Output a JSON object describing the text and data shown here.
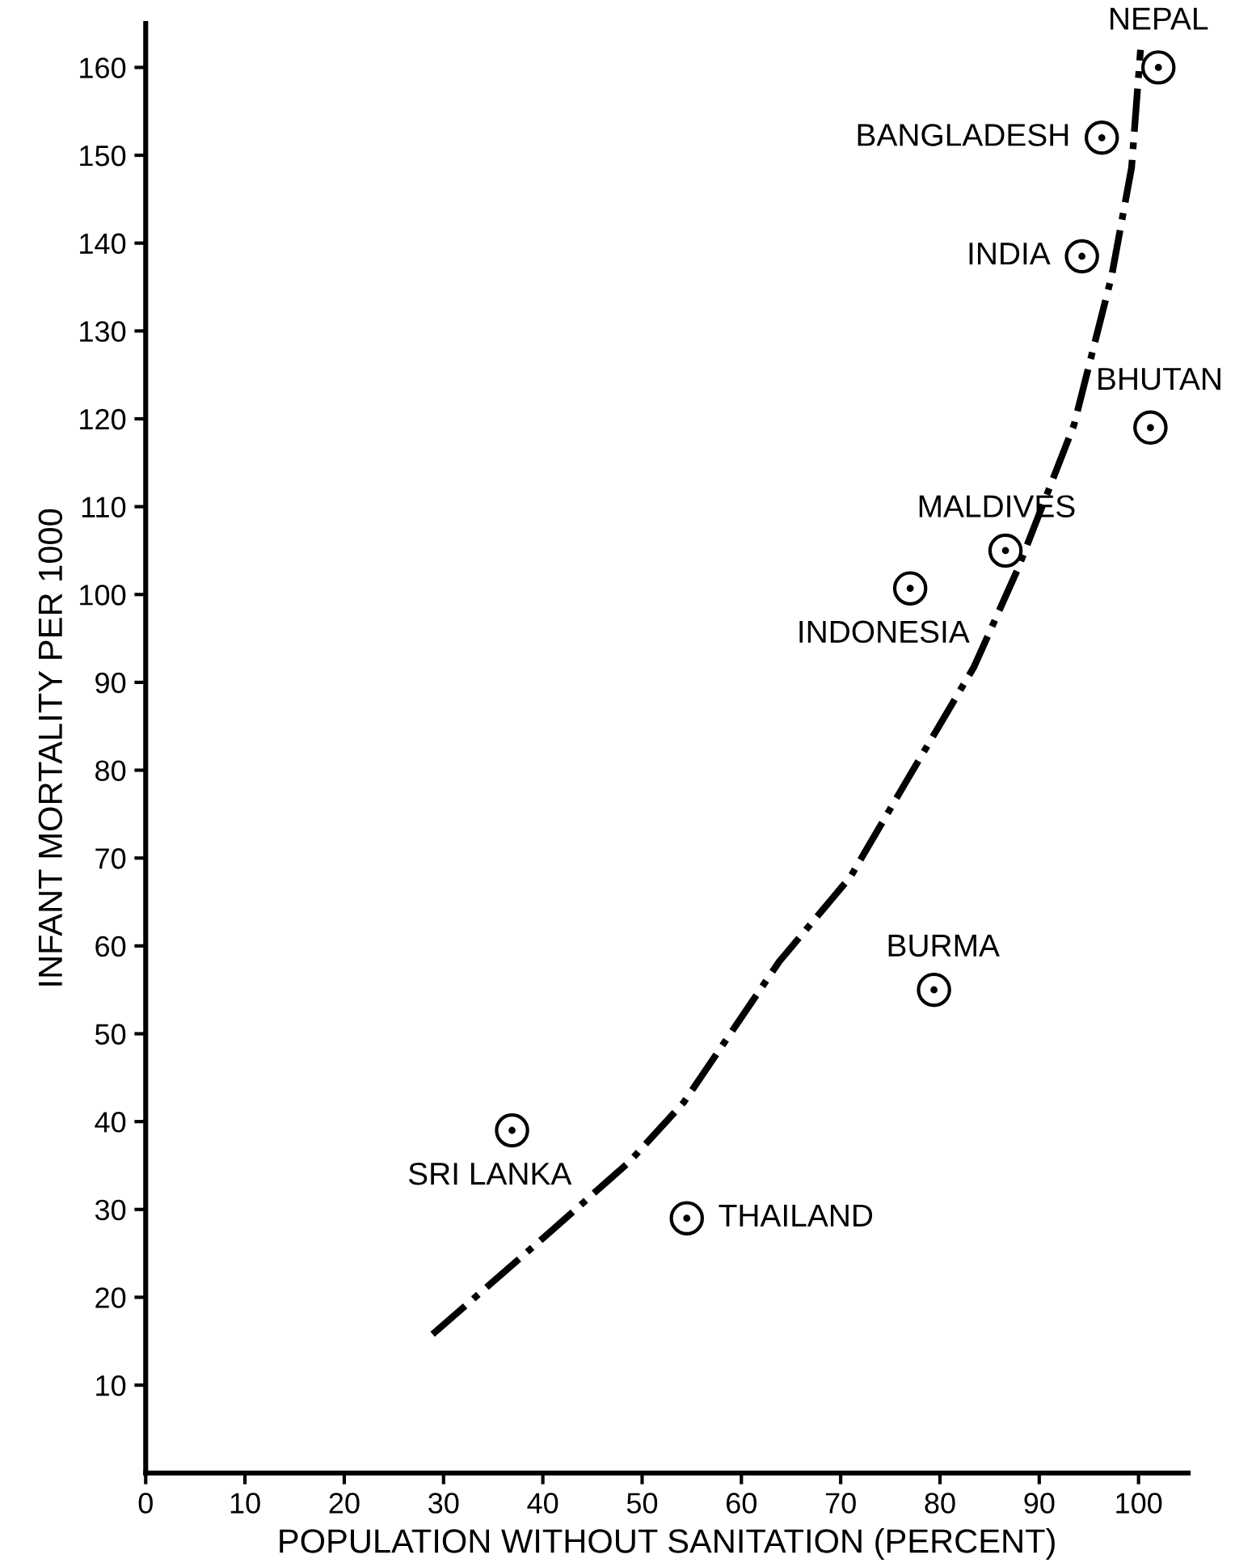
{
  "chart_data": {
    "type": "scatter",
    "xlabel": "POPULATION WITHOUT SANITATION (PERCENT)",
    "ylabel": "INFANT MORTALITY PER 1000",
    "xlim": [
      0,
      105
    ],
    "ylim": [
      0,
      165
    ],
    "xticks": [
      0,
      10,
      20,
      30,
      40,
      50,
      60,
      70,
      80,
      90,
      100
    ],
    "yticks": [
      10,
      20,
      30,
      40,
      50,
      60,
      70,
      80,
      90,
      100,
      110,
      120,
      130,
      140,
      150,
      160
    ],
    "grid": false,
    "legend": false,
    "series": [
      {
        "marker": "circle",
        "color": "#000000",
        "x": [
          102,
          96.3,
          94.3,
          101.2,
          86.6,
          77.0,
          36.9,
          79.4,
          54.5
        ],
        "values": [
          160,
          152,
          138.5,
          119,
          105,
          100.7,
          39,
          55,
          29
        ]
      },
      {
        "type": "line",
        "color": "#000000",
        "line_style": "dashdot",
        "x": [
          28.9,
          40.8,
          48.7,
          54.2,
          63.8,
          71.0,
          76.7,
          83.4,
          87.8,
          93.5,
          97.3,
          99.3,
          100.2
        ],
        "values": [
          15.8,
          27.5,
          35.4,
          42.2,
          58.2,
          67.9,
          78.9,
          91.7,
          102.8,
          119.3,
          136.3,
          148.6,
          162.0
        ]
      }
    ],
    "annotations": [
      {
        "text": "NEPAL",
        "x": 102,
        "y": 160
      },
      {
        "text": "BANGLADESH",
        "x": 96.3,
        "y": 152
      },
      {
        "text": "INDIA",
        "x": 94.3,
        "y": 138.5
      },
      {
        "text": "BHUTAN",
        "x": 101.2,
        "y": 119
      },
      {
        "text": "MALDIVES",
        "x": 86.6,
        "y": 105
      },
      {
        "text": "INDONESIA",
        "x": 77.0,
        "y": 100.7
      },
      {
        "text": "SRI LANKA",
        "x": 36.9,
        "y": 39
      },
      {
        "text": "BURMA",
        "x": 79.4,
        "y": 55
      },
      {
        "text": "THAILAND",
        "x": 54.5,
        "y": 29
      }
    ]
  }
}
